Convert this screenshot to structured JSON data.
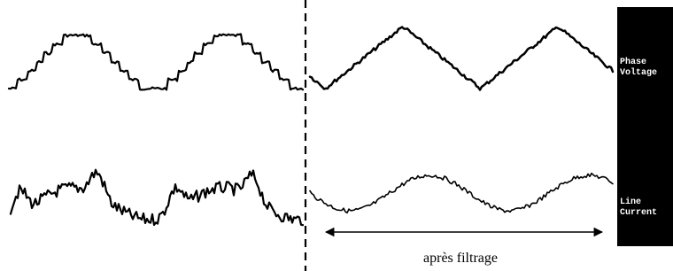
{
  "panel": {
    "labels": [
      {
        "line1": "Phase",
        "line2": "Voltage"
      },
      {
        "line1": "Line",
        "line2": "Current"
      }
    ]
  },
  "annotation": "après filtrage"
}
